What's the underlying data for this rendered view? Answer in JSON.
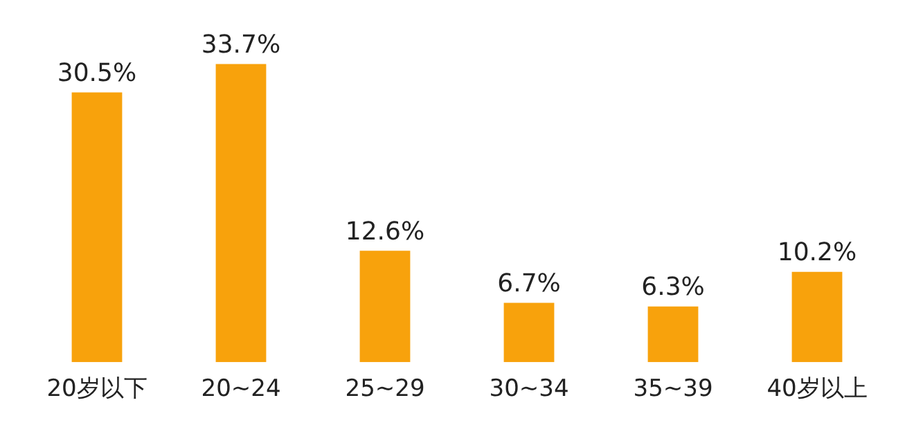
{
  "chart_data": {
    "type": "bar",
    "categories": [
      "20岁以下",
      "20~24",
      "25~29",
      "30~34",
      "35~39",
      "40岁以上"
    ],
    "values": [
      30.5,
      33.7,
      12.6,
      6.7,
      6.3,
      10.2
    ],
    "value_labels": [
      "30.5%",
      "33.7%",
      "12.6%",
      "6.7%",
      "6.3%",
      "10.2%"
    ],
    "color": "#f8a20c",
    "grid": false,
    "legend": false
  }
}
